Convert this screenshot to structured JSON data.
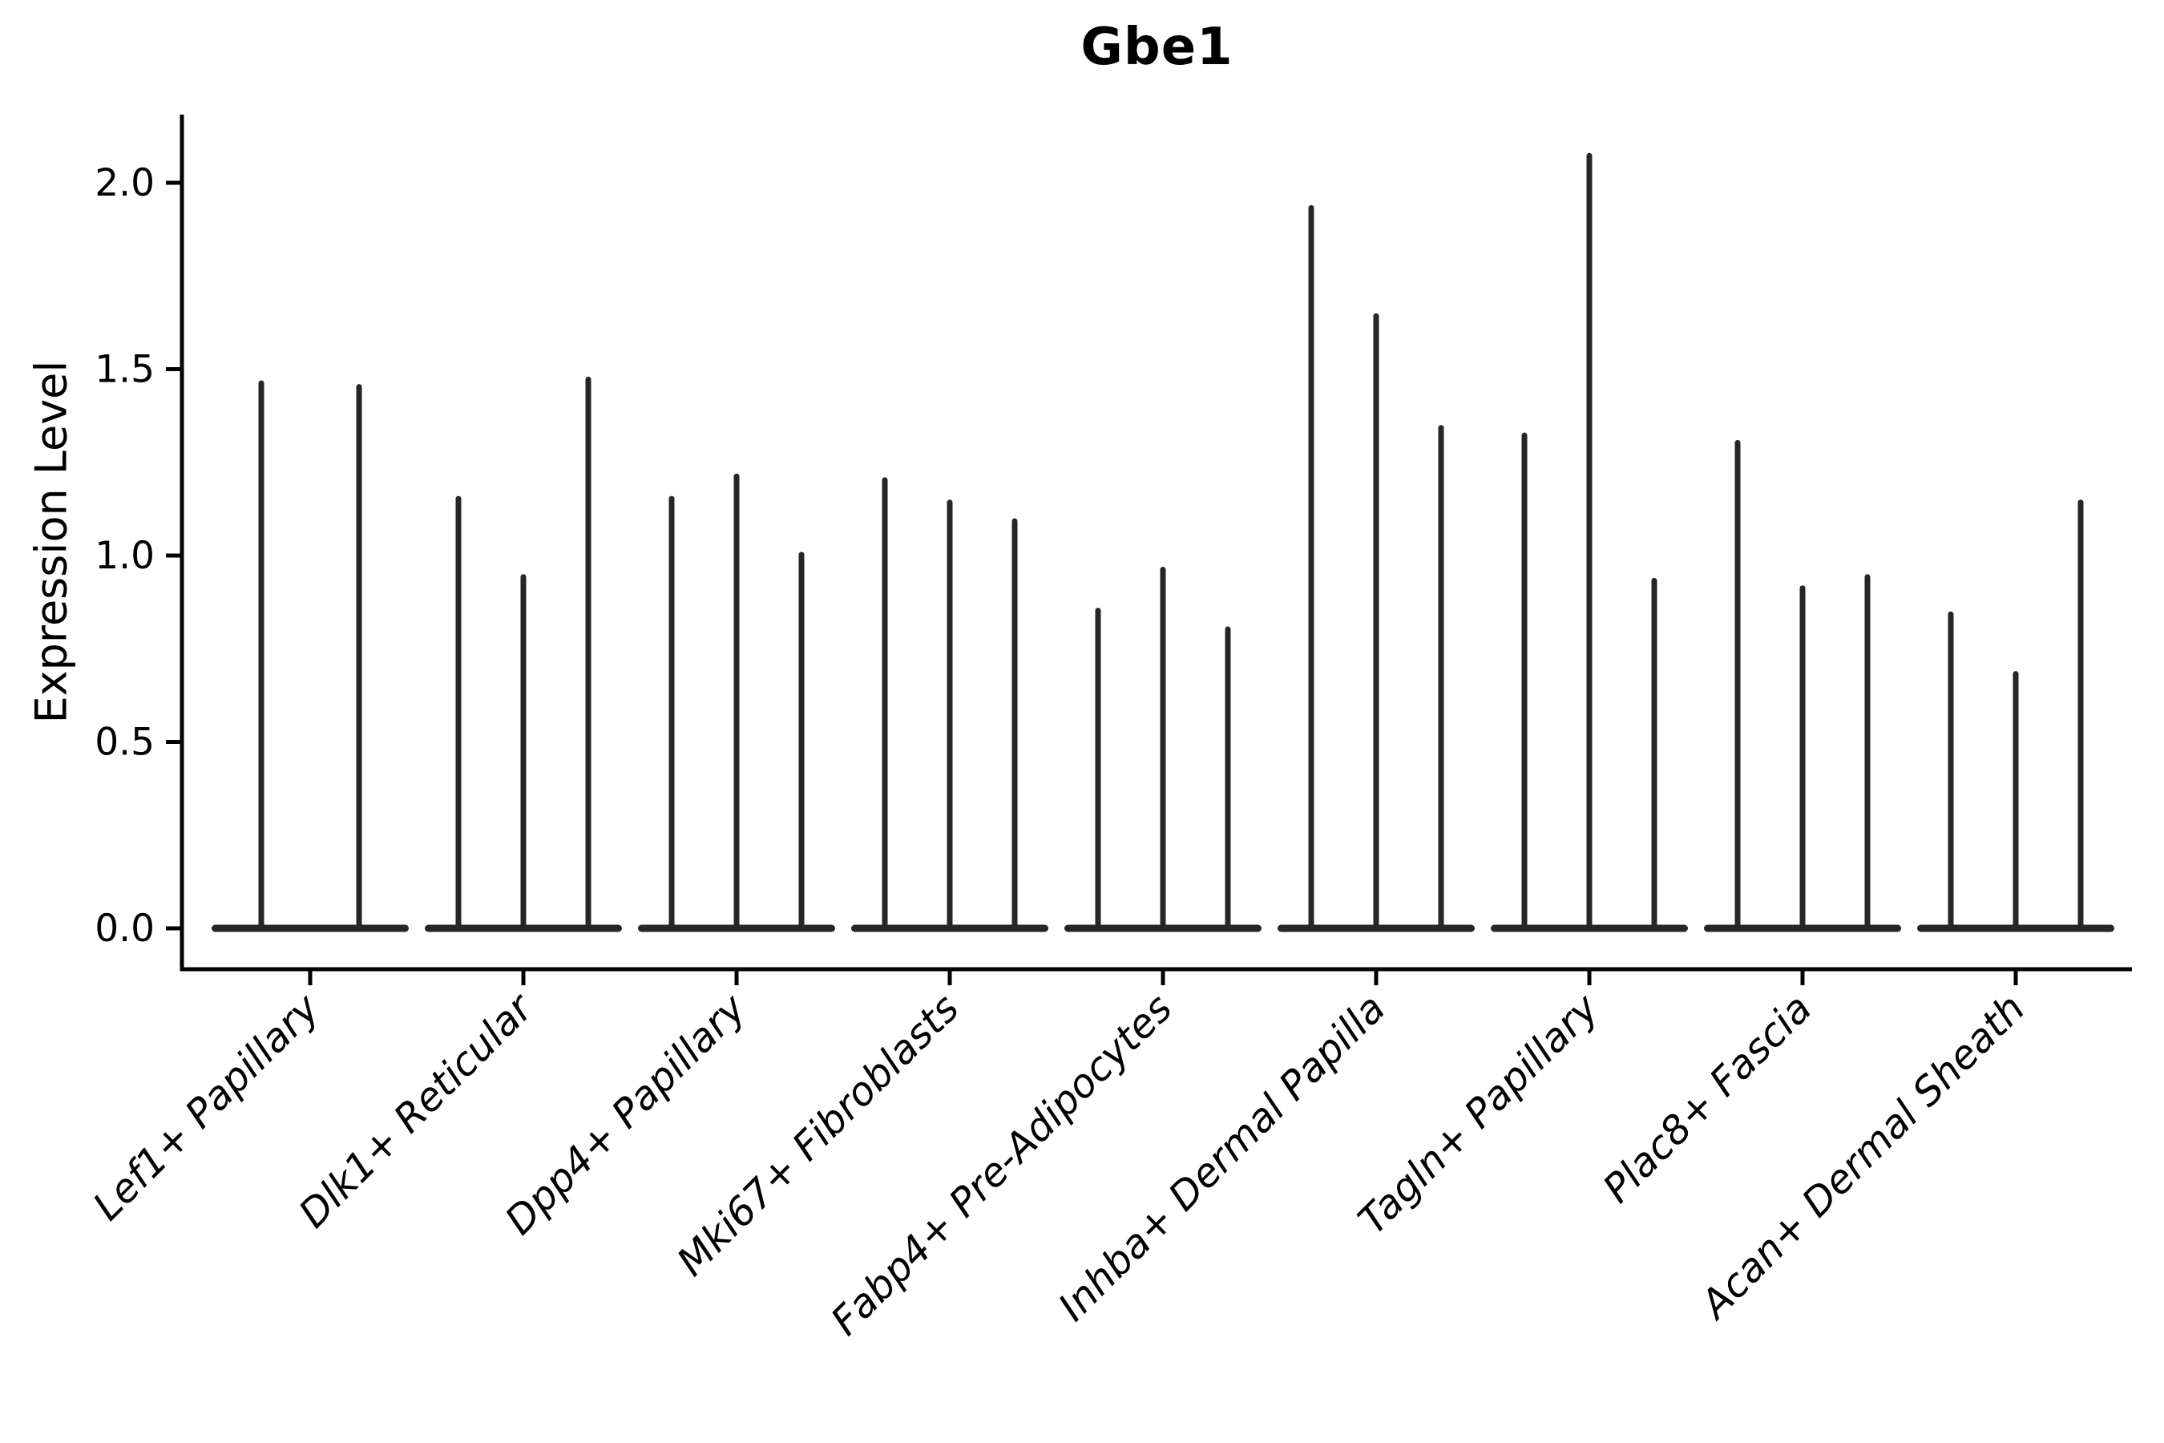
{
  "figure": {
    "title": "Gbe1",
    "y_axis_label": "Expression Level"
  },
  "chart_data": {
    "type": "violin",
    "title": "Gbe1",
    "xlabel": "",
    "ylabel": "Expression Level",
    "ylim": [
      -0.11,
      2.18
    ],
    "yticks": [
      0.0,
      0.5,
      1.0,
      1.5,
      2.0
    ],
    "ytick_labels": [
      "0.0",
      "0.5",
      "1.0",
      "1.5",
      "2.0"
    ],
    "grid": false,
    "legend": "none",
    "baseline_value": 0.0,
    "categories": [
      "Lef1+ Papillary",
      "Dlk1+ Reticular",
      "Dpp4+ Papillary",
      "Mki67+ Fibroblasts",
      "Fabp4+ Pre-Adipocytes",
      "Inhba+ Dermal Papilla",
      "Tagln+ Papillary",
      "Plac8+ Fascia",
      "Acan+ Dermal Sheath"
    ],
    "groups": [
      {
        "label": "Lef1+ Papillary",
        "violin_max_values": [
          1.47,
          1.46
        ]
      },
      {
        "label": "Dlk1+ Reticular",
        "violin_max_values": [
          1.16,
          0.95,
          1.48
        ]
      },
      {
        "label": "Dpp4+ Papillary",
        "violin_max_values": [
          1.16,
          1.22,
          1.01
        ]
      },
      {
        "label": "Mki67+ Fibroblasts",
        "violin_max_values": [
          1.21,
          1.15,
          1.1
        ]
      },
      {
        "label": "Fabp4+ Pre-Adipocytes",
        "violin_max_values": [
          0.86,
          0.97,
          0.81
        ]
      },
      {
        "label": "Inhba+ Dermal Papilla",
        "violin_max_values": [
          1.94,
          1.65,
          1.35
        ]
      },
      {
        "label": "Tagln+ Papillary",
        "violin_max_values": [
          1.33,
          2.08,
          0.94
        ]
      },
      {
        "label": "Plac8+ Fascia",
        "violin_max_values": [
          1.31,
          0.92,
          0.95
        ]
      },
      {
        "label": "Acan+ Dermal Sheath",
        "violin_max_values": [
          0.85,
          0.69,
          1.15
        ]
      }
    ]
  }
}
